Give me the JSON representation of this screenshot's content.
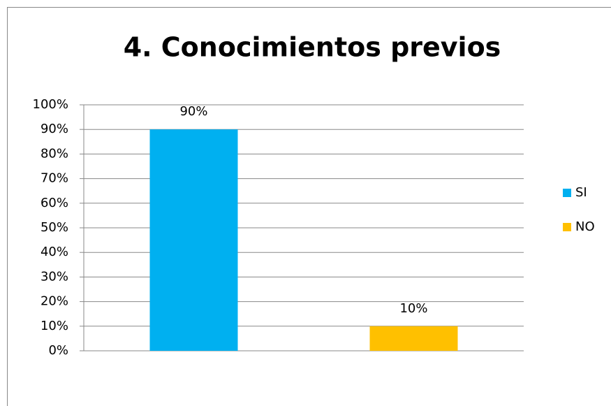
{
  "chart_data": {
    "type": "bar",
    "title": "4. Conocimientos previos",
    "categories": [
      null
    ],
    "series": [
      {
        "name": "SI",
        "color": "#00b0f0",
        "values": [
          90
        ],
        "value_labels": [
          "90%"
        ]
      },
      {
        "name": "NO",
        "color": "#ffc000",
        "values": [
          10
        ],
        "value_labels": [
          "10%"
        ]
      }
    ],
    "ylim": [
      0,
      100
    ],
    "yticks": [
      {
        "value": 0,
        "label": "0%"
      },
      {
        "value": 10,
        "label": "10%"
      },
      {
        "value": 20,
        "label": "20%"
      },
      {
        "value": 30,
        "label": "30%"
      },
      {
        "value": 40,
        "label": "40%"
      },
      {
        "value": 50,
        "label": "50%"
      },
      {
        "value": 60,
        "label": "60%"
      },
      {
        "value": 70,
        "label": "70%"
      },
      {
        "value": 80,
        "label": "80%"
      },
      {
        "value": 90,
        "label": "90%"
      },
      {
        "value": 100,
        "label": "100%"
      }
    ],
    "grid": true,
    "legend": "right"
  }
}
